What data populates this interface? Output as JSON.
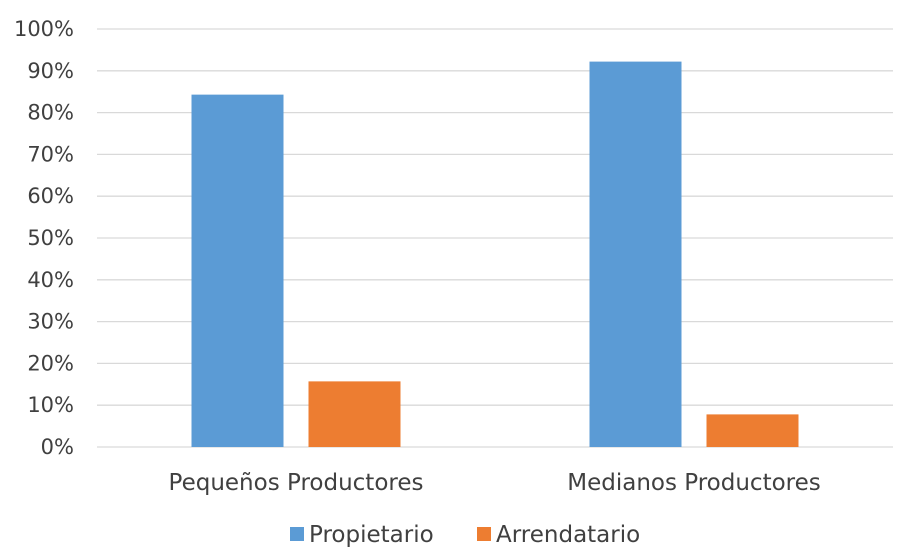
{
  "chart_data": {
    "type": "bar",
    "categories": [
      "Pequeños Productores",
      "Medianos Productores"
    ],
    "series": [
      {
        "name": "Propietario",
        "values": [
          84.3,
          92.2
        ],
        "color": "#5b9bd5"
      },
      {
        "name": "Arrendatario",
        "values": [
          15.7,
          7.8
        ],
        "color": "#ed7d31"
      }
    ],
    "ylim": [
      0,
      100
    ],
    "yticks": [
      "0%",
      "10%",
      "20%",
      "30%",
      "40%",
      "50%",
      "60%",
      "70%",
      "80%",
      "90%",
      "100%"
    ],
    "grid": true,
    "legend_position": "bottom"
  }
}
